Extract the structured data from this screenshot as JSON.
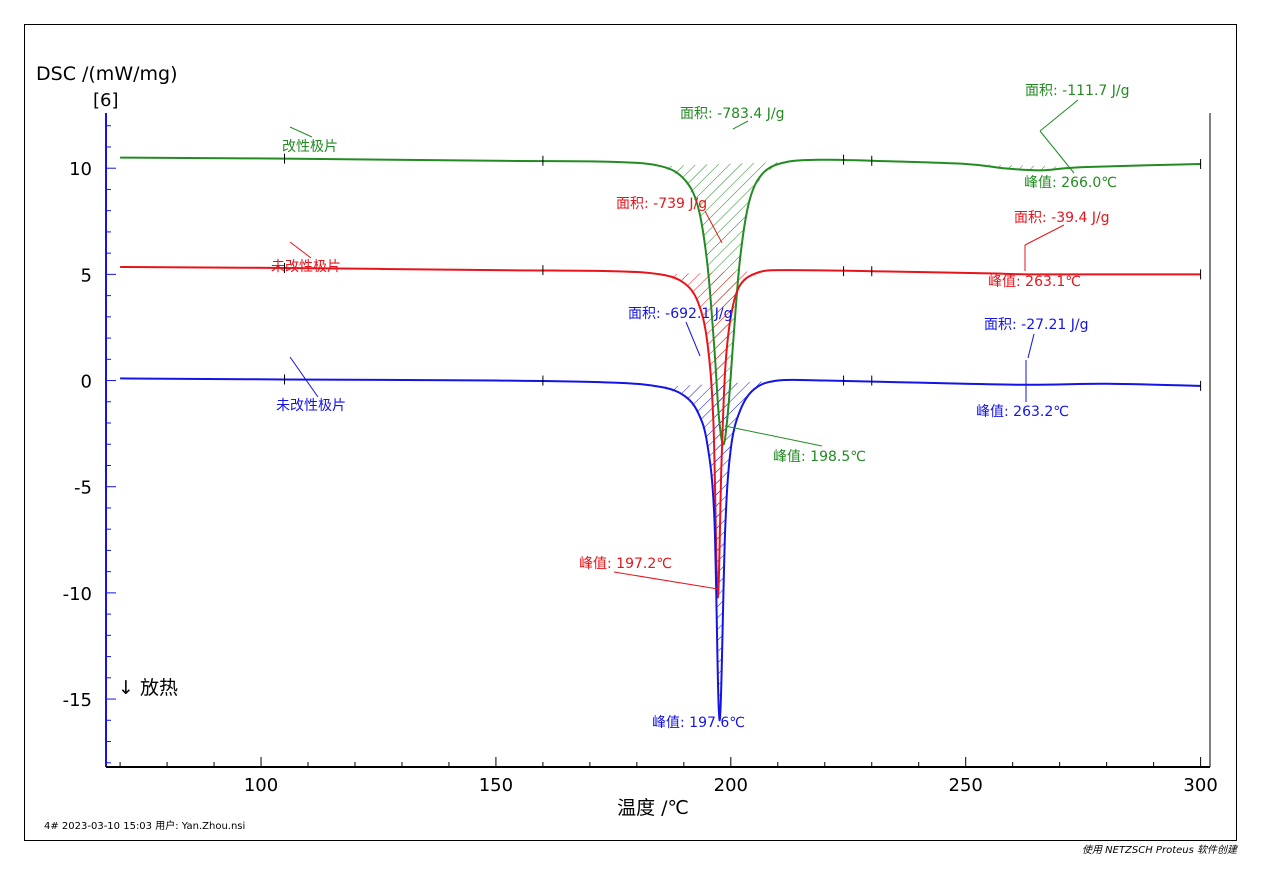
{
  "chart_data": {
    "type": "line",
    "ylabel": "DSC /(mW/mg)",
    "y_tag": "[6]",
    "xlabel": "温度 /℃",
    "xlim": [
      67,
      302
    ],
    "ylim": [
      -18.2,
      12.6
    ],
    "x_ticks": [
      100,
      150,
      200,
      250,
      300
    ],
    "y_ticks": [
      10,
      5,
      0,
      -5,
      -10,
      -15
    ],
    "direction_note": "↓ 放热",
    "series": [
      {
        "name": "改性极片",
        "color": "#228b22",
        "points": [
          [
            70,
            10.5
          ],
          [
            105,
            10.45
          ],
          [
            150,
            10.35
          ],
          [
            175,
            10.3
          ],
          [
            185,
            10.1
          ],
          [
            190,
            9.5
          ],
          [
            193,
            8.2
          ],
          [
            195,
            5.5
          ],
          [
            196.5,
            1.5
          ],
          [
            197.5,
            -1.8
          ],
          [
            198.5,
            -3.0
          ],
          [
            199.5,
            -1.2
          ],
          [
            200.5,
            1.8
          ],
          [
            202,
            5.8
          ],
          [
            204,
            8.5
          ],
          [
            207,
            9.8
          ],
          [
            212,
            10.3
          ],
          [
            220,
            10.4
          ],
          [
            230,
            10.35
          ],
          [
            250,
            10.2
          ],
          [
            258,
            10.0
          ],
          [
            266,
            9.9
          ],
          [
            275,
            10.05
          ],
          [
            300,
            10.2
          ]
        ],
        "annotations": [
          {
            "label": "面积: -783.4 J/g"
          },
          {
            "label": "峰值: 198.5℃"
          },
          {
            "label": "面积: -111.7 J/g"
          },
          {
            "label": "峰值: 266.0℃"
          }
        ]
      },
      {
        "name": "未改性极片",
        "color": "#e8141b",
        "points": [
          [
            70,
            5.35
          ],
          [
            105,
            5.3
          ],
          [
            150,
            5.2
          ],
          [
            175,
            5.15
          ],
          [
            185,
            5.0
          ],
          [
            190,
            4.6
          ],
          [
            193,
            3.7
          ],
          [
            195,
            1.8
          ],
          [
            196.3,
            -2.0
          ],
          [
            197.2,
            -10.2
          ],
          [
            198.0,
            -4.0
          ],
          [
            198.8,
            0.5
          ],
          [
            200,
            3.0
          ],
          [
            202,
            4.5
          ],
          [
            206,
            5.1
          ],
          [
            212,
            5.2
          ],
          [
            230,
            5.15
          ],
          [
            255,
            5.05
          ],
          [
            263,
            5.0
          ],
          [
            280,
            5.0
          ],
          [
            300,
            5.0
          ]
        ],
        "annotations": [
          {
            "label": "面积: -739 J/g"
          },
          {
            "label": "峰值: 197.2℃"
          },
          {
            "label": "面积: -39.4 J/g"
          },
          {
            "label": "峰值: 263.1℃"
          }
        ]
      },
      {
        "name": "未改性极片",
        "color": "#1414e6",
        "points": [
          [
            70,
            0.1
          ],
          [
            105,
            0.05
          ],
          [
            150,
            0.0
          ],
          [
            175,
            -0.1
          ],
          [
            185,
            -0.3
          ],
          [
            190,
            -0.7
          ],
          [
            193,
            -1.5
          ],
          [
            195,
            -3.0
          ],
          [
            196.5,
            -6.5
          ],
          [
            197.6,
            -16.0
          ],
          [
            198.8,
            -7.0
          ],
          [
            200,
            -3.2
          ],
          [
            202,
            -1.4
          ],
          [
            205,
            -0.4
          ],
          [
            210,
            0.0
          ],
          [
            220,
            0.0
          ],
          [
            240,
            -0.1
          ],
          [
            263,
            -0.2
          ],
          [
            280,
            -0.15
          ],
          [
            300,
            -0.25
          ]
        ],
        "annotations": [
          {
            "label": "面积: -692.1 J/g"
          },
          {
            "label": "峰值: 197.6℃"
          },
          {
            "label": "面积: -27.21 J/g"
          },
          {
            "label": "峰值: 263.2℃"
          }
        ]
      }
    ]
  },
  "footer": {
    "left": "4#     2023-03-10 15:03    用户: Yan.Zhou.nsi",
    "right": "使用 NETZSCH Proteus 软件创建"
  }
}
